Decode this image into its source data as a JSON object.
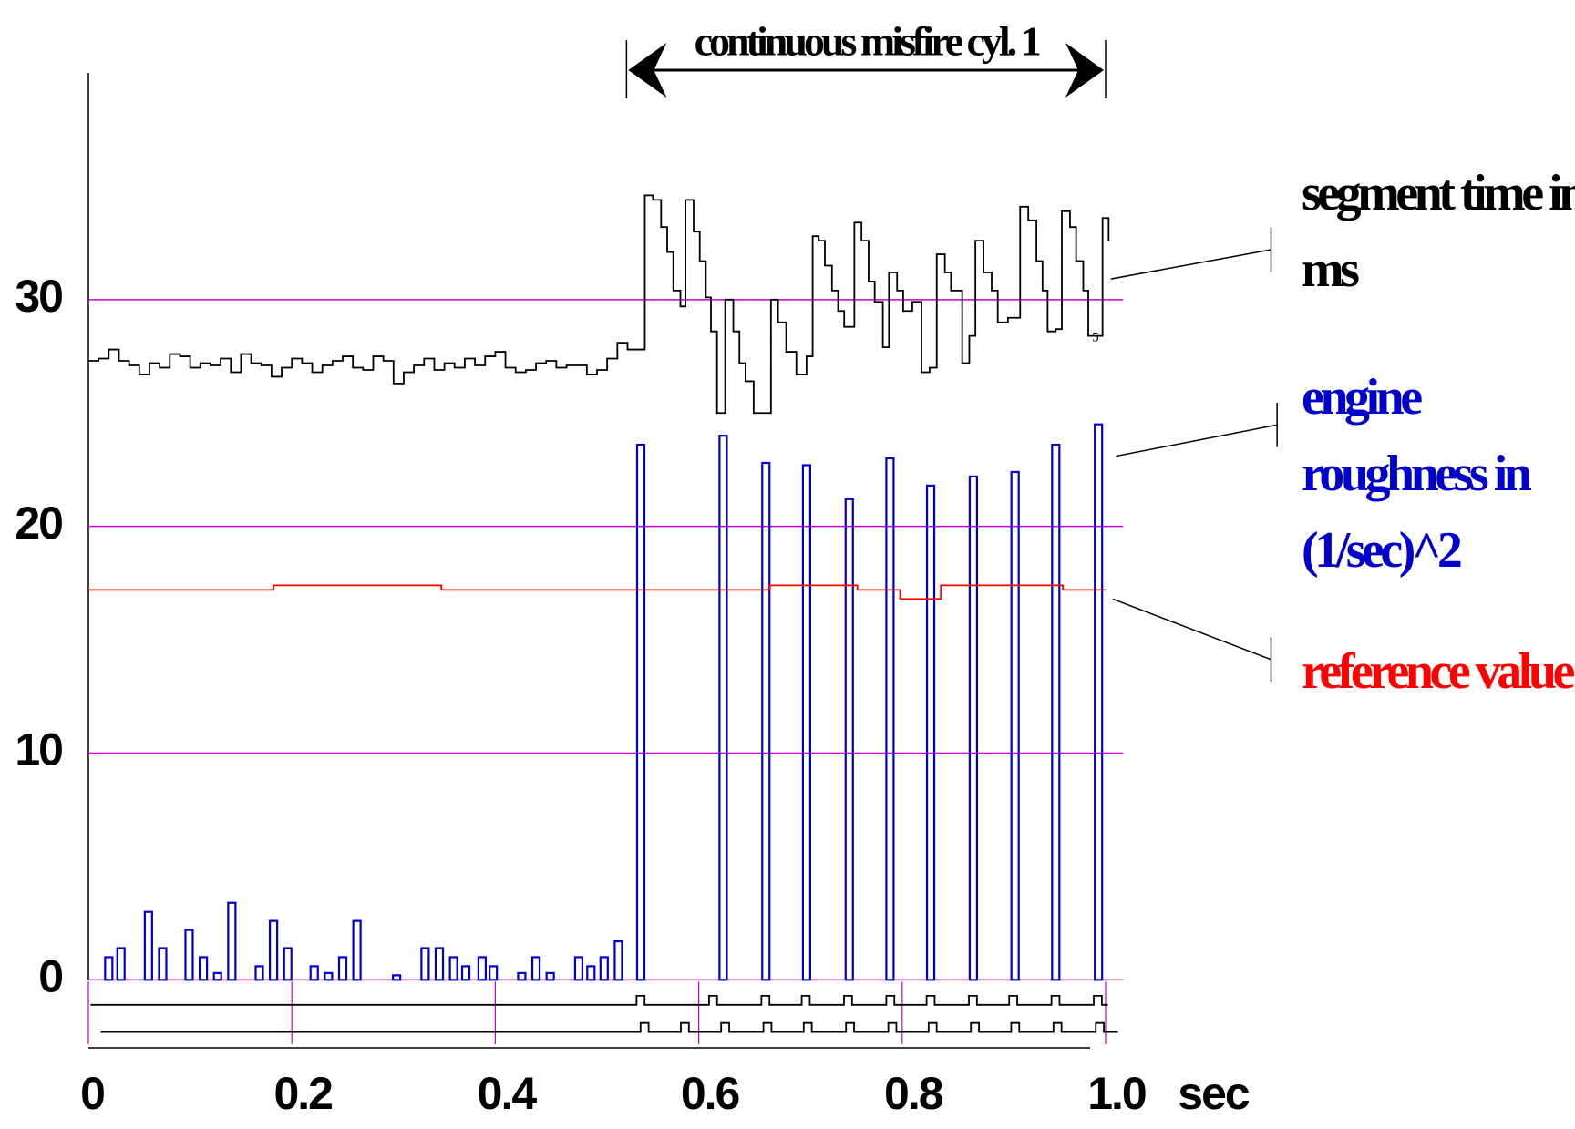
{
  "chart_data": {
    "type": "line",
    "xlabel": "sec",
    "xlim": [
      0,
      1.02
    ],
    "ylim": [
      -3,
      40
    ],
    "xticks": [
      0,
      0.2,
      0.4,
      0.6,
      0.8,
      {
        "value": 1,
        "label": "1.0"
      }
    ],
    "yticks": [
      0,
      10,
      20,
      30
    ],
    "grid": true,
    "grid_color": "#cc00cc",
    "annotations": [
      {
        "text": "continuous misfire cyl. 1",
        "x": [
          0.529,
          1.0
        ]
      },
      {
        "text": "5",
        "x": 0.99,
        "y": 28.3
      }
    ],
    "series": [
      {
        "name": "segment time in ms",
        "color": "#000000",
        "style": "step",
        "x": [
          0,
          0.01,
          0.02,
          0.03,
          0.04,
          0.05,
          0.06,
          0.07,
          0.08,
          0.09,
          0.1,
          0.11,
          0.12,
          0.13,
          0.14,
          0.15,
          0.16,
          0.17,
          0.18,
          0.19,
          0.2,
          0.21,
          0.22,
          0.23,
          0.24,
          0.25,
          0.26,
          0.27,
          0.28,
          0.29,
          0.3,
          0.31,
          0.32,
          0.33,
          0.34,
          0.35,
          0.36,
          0.37,
          0.38,
          0.39,
          0.4,
          0.41,
          0.42,
          0.43,
          0.44,
          0.45,
          0.46,
          0.47,
          0.48,
          0.49,
          0.5,
          0.51,
          0.52,
          0.53,
          0.547,
          0.555,
          0.563,
          0.569,
          0.575,
          0.582,
          0.587,
          0.595,
          0.601,
          0.607,
          0.612,
          0.618,
          0.626,
          0.634,
          0.64,
          0.646,
          0.654,
          0.671,
          0.678,
          0.686,
          0.696,
          0.706,
          0.712,
          0.718,
          0.724,
          0.731,
          0.737,
          0.743,
          0.753,
          0.76,
          0.767,
          0.773,
          0.781,
          0.787,
          0.795,
          0.801,
          0.81,
          0.819,
          0.827,
          0.834,
          0.842,
          0.848,
          0.859,
          0.866,
          0.872,
          0.88,
          0.888,
          0.894,
          0.904,
          0.916,
          0.924,
          0.932,
          0.938,
          0.943,
          0.951,
          0.957,
          0.965,
          0.971,
          0.978,
          0.983,
          0.997,
          1.003
        ],
        "values": [
          27.3,
          27.4,
          27.8,
          27.3,
          27.1,
          26.7,
          27.2,
          27.0,
          27.6,
          27.5,
          27.0,
          27.2,
          27.1,
          27.4,
          26.8,
          27.6,
          27.2,
          27.1,
          26.6,
          27.0,
          27.4,
          27.2,
          26.8,
          27.1,
          27.3,
          27.5,
          27.0,
          26.9,
          27.5,
          27.3,
          26.3,
          26.8,
          27.1,
          27.4,
          26.9,
          27.2,
          27.0,
          27.4,
          27.1,
          27.5,
          27.7,
          27.0,
          26.8,
          26.9,
          27.2,
          27.3,
          27.0,
          27.1,
          27.1,
          26.7,
          26.9,
          27.4,
          28.1,
          27.8,
          34.6,
          34.4,
          33.2,
          32.1,
          30.4,
          29.7,
          34.4,
          33.0,
          31.7,
          30.1,
          28.6,
          25.0,
          30.0,
          28.6,
          27.2,
          26.4,
          25.0,
          30.0,
          29.0,
          27.7,
          26.7,
          27.5,
          32.8,
          32.6,
          31.5,
          30.4,
          29.5,
          28.8,
          33.4,
          32.6,
          30.8,
          29.9,
          27.9,
          31.2,
          30.4,
          29.5,
          29.9,
          26.8,
          27.0,
          32.0,
          31.2,
          30.4,
          27.2,
          28.4,
          32.6,
          31.2,
          30.4,
          29.0,
          29.2,
          34.1,
          33.5,
          31.7,
          30.4,
          28.6,
          28.7,
          33.9,
          33.2,
          31.7,
          30.4,
          28.4,
          33.6,
          32.6
        ]
      },
      {
        "name": "engine roughness in (1/sec)^2",
        "color": "#0000cc",
        "style": "bar",
        "x": [
          0.02,
          0.032,
          0.059,
          0.073,
          0.099,
          0.113,
          0.127,
          0.141,
          0.168,
          0.182,
          0.196,
          0.222,
          0.236,
          0.25,
          0.264,
          0.303,
          0.331,
          0.345,
          0.359,
          0.371,
          0.387,
          0.398,
          0.426,
          0.44,
          0.454,
          0.482,
          0.494,
          0.507,
          0.521,
          0.543,
          0.624,
          0.666,
          0.706,
          0.748,
          0.788,
          0.828,
          0.87,
          0.911,
          0.951,
          0.993
        ],
        "values": [
          1.0,
          1.4,
          3.0,
          1.4,
          2.2,
          1.0,
          0.3,
          3.4,
          0.6,
          2.6,
          1.4,
          0.6,
          0.3,
          1.0,
          2.6,
          0.2,
          1.4,
          1.4,
          1.0,
          0.6,
          1.0,
          0.6,
          0.3,
          1.0,
          0.3,
          1.0,
          0.6,
          1.0,
          1.7,
          23.6,
          24.0,
          22.8,
          22.7,
          21.2,
          23.0,
          21.8,
          22.2,
          22.4,
          23.6,
          24.5
        ]
      },
      {
        "name": "reference value",
        "color": "#ff0000",
        "style": "step",
        "x": [
          0,
          0.182,
          0.347,
          0.67,
          0.756,
          0.798,
          0.838,
          0.958,
          1.0
        ],
        "values": [
          17.2,
          17.4,
          17.2,
          17.4,
          17.2,
          16.8,
          17.4,
          17.2,
          17.2
        ]
      }
    ]
  }
}
